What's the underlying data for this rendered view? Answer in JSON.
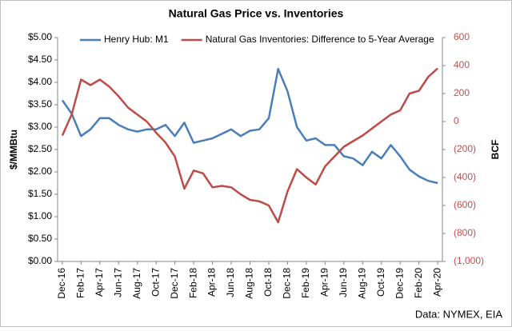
{
  "chart_data": {
    "type": "line",
    "title": "Natural Gas Price vs. Inventories",
    "y_label": "$/MMBtu",
    "y2_label": "BCF",
    "source": "Data: NYMEX, EIA",
    "legend": "top",
    "categories": [
      "Dec-16",
      null,
      "Feb-17",
      null,
      "Apr-17",
      null,
      "Jun-17",
      null,
      "Aug-17",
      null,
      "Oct-17",
      null,
      "Dec-17",
      null,
      "Feb-18",
      null,
      "Apr-18",
      null,
      "Jun-18",
      null,
      "Aug-18",
      null,
      "Oct-18",
      null,
      "Dec-18",
      null,
      "Feb-19",
      null,
      "Apr-19",
      null,
      "Jun-19",
      null,
      "Aug-19",
      null,
      "Oct-19",
      null,
      "Dec-19",
      null,
      "Feb-20",
      null,
      "Apr-20"
    ],
    "series": [
      {
        "name": "Henry Hub: M1",
        "color": "#4a7ebb",
        "axis": "y",
        "values": [
          3.6,
          3.3,
          2.8,
          2.95,
          3.2,
          3.2,
          3.05,
          2.95,
          2.9,
          2.95,
          2.95,
          3.05,
          2.8,
          3.1,
          2.65,
          2.7,
          2.75,
          2.85,
          2.95,
          2.8,
          2.92,
          2.95,
          3.2,
          4.3,
          3.8,
          3.0,
          2.7,
          2.75,
          2.6,
          2.6,
          2.35,
          2.3,
          2.15,
          2.45,
          2.3,
          2.6,
          2.35,
          2.05,
          1.9,
          1.8,
          1.75
        ]
      },
      {
        "name": "Natural Gas Inventories: Difference to 5-Year Average",
        "color": "#be4b48",
        "axis": "y2",
        "values": [
          -100,
          50,
          300,
          260,
          300,
          250,
          180,
          100,
          50,
          0,
          -80,
          -150,
          -250,
          -480,
          -350,
          -370,
          -470,
          -460,
          -470,
          -520,
          -560,
          -570,
          -600,
          -720,
          -500,
          -340,
          -400,
          -450,
          -320,
          -250,
          -180,
          -140,
          -100,
          -50,
          0,
          50,
          80,
          200,
          220,
          320,
          380
        ]
      }
    ],
    "ylim": [
      0,
      5
    ],
    "yticks": [
      {
        "value": 0,
        "label": "$0.00"
      },
      {
        "value": 0.5,
        "label": "$0.50"
      },
      {
        "value": 1,
        "label": "$1.00"
      },
      {
        "value": 1.5,
        "label": "$1.50"
      },
      {
        "value": 2,
        "label": "$2.00"
      },
      {
        "value": 2.5,
        "label": "$2.50"
      },
      {
        "value": 3,
        "label": "$3.00"
      },
      {
        "value": 3.5,
        "label": "$3.50"
      },
      {
        "value": 4,
        "label": "$4.00"
      },
      {
        "value": 4.5,
        "label": "$4.50"
      },
      {
        "value": 5,
        "label": "$5.00"
      }
    ],
    "y2lim": [
      -1000,
      600
    ],
    "y2ticks": [
      {
        "value": -1000,
        "label": "(1,000)"
      },
      {
        "value": -800,
        "label": "(800)"
      },
      {
        "value": -600,
        "label": "(600)"
      },
      {
        "value": -400,
        "label": "(400)"
      },
      {
        "value": -200,
        "label": "(200)"
      },
      0,
      200,
      400,
      600
    ]
  }
}
